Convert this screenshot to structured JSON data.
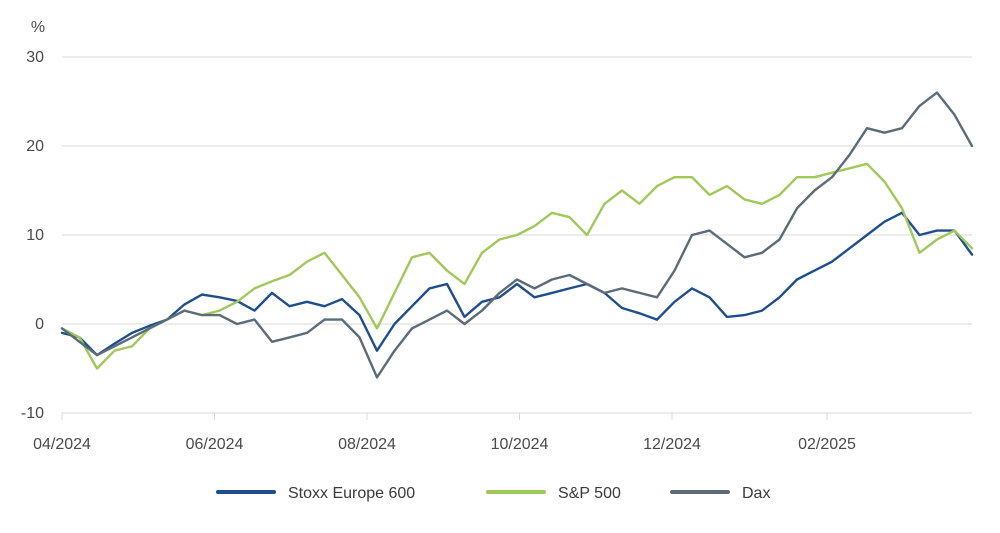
{
  "chart_data": {
    "type": "line",
    "ylabel": "%",
    "ylim": [
      -10,
      30
    ],
    "yticks": [
      -10,
      0,
      10,
      20,
      30
    ],
    "xlim": [
      "2024-04-01",
      "2025-03-31"
    ],
    "xticks": [
      {
        "date": "2024-04-01",
        "label": "04/2024"
      },
      {
        "date": "2024-06-01",
        "label": "06/2024"
      },
      {
        "date": "2024-08-01",
        "label": "08/2024"
      },
      {
        "date": "2024-10-01",
        "label": "10/2024"
      },
      {
        "date": "2024-12-01",
        "label": "12/2024"
      },
      {
        "date": "2025-02-01",
        "label": "02/2025"
      }
    ],
    "grid": "horizontal",
    "legend_position": "bottom",
    "series": [
      {
        "name": "Stoxx Europe 600",
        "color": "#1f4e8c",
        "points": [
          [
            "2024-04-01",
            -1.0
          ],
          [
            "2024-04-08",
            -1.5
          ],
          [
            "2024-04-15",
            -3.5
          ],
          [
            "2024-04-22",
            -2.2
          ],
          [
            "2024-04-29",
            -1.0
          ],
          [
            "2024-05-06",
            -0.2
          ],
          [
            "2024-05-13",
            0.5
          ],
          [
            "2024-05-20",
            2.2
          ],
          [
            "2024-05-27",
            3.3
          ],
          [
            "2024-06-03",
            3.0
          ],
          [
            "2024-06-10",
            2.6
          ],
          [
            "2024-06-17",
            1.5
          ],
          [
            "2024-06-24",
            3.5
          ],
          [
            "2024-07-01",
            2.0
          ],
          [
            "2024-07-08",
            2.5
          ],
          [
            "2024-07-15",
            2.0
          ],
          [
            "2024-07-22",
            2.8
          ],
          [
            "2024-07-29",
            1.0
          ],
          [
            "2024-08-05",
            -3.0
          ],
          [
            "2024-08-12",
            0.0
          ],
          [
            "2024-08-19",
            2.0
          ],
          [
            "2024-08-26",
            4.0
          ],
          [
            "2024-09-02",
            4.5
          ],
          [
            "2024-09-09",
            0.8
          ],
          [
            "2024-09-16",
            2.5
          ],
          [
            "2024-09-23",
            3.0
          ],
          [
            "2024-09-30",
            4.5
          ],
          [
            "2024-10-07",
            3.0
          ],
          [
            "2024-10-14",
            3.5
          ],
          [
            "2024-10-21",
            4.0
          ],
          [
            "2024-10-28",
            4.5
          ],
          [
            "2024-11-04",
            3.5
          ],
          [
            "2024-11-11",
            1.8
          ],
          [
            "2024-11-18",
            1.2
          ],
          [
            "2024-11-25",
            0.5
          ],
          [
            "2024-12-02",
            2.5
          ],
          [
            "2024-12-09",
            4.0
          ],
          [
            "2024-12-16",
            3.0
          ],
          [
            "2024-12-23",
            0.8
          ],
          [
            "2024-12-30",
            1.0
          ],
          [
            "2025-01-06",
            1.5
          ],
          [
            "2025-01-13",
            3.0
          ],
          [
            "2025-01-20",
            5.0
          ],
          [
            "2025-01-27",
            6.0
          ],
          [
            "2025-02-03",
            7.0
          ],
          [
            "2025-02-10",
            8.5
          ],
          [
            "2025-02-17",
            10.0
          ],
          [
            "2025-02-24",
            11.5
          ],
          [
            "2025-03-03",
            12.5
          ],
          [
            "2025-03-10",
            10.0
          ],
          [
            "2025-03-17",
            10.5
          ],
          [
            "2025-03-24",
            10.5
          ],
          [
            "2025-03-31",
            7.8
          ]
        ]
      },
      {
        "name": "S&P 500",
        "color": "#a0c95a",
        "points": [
          [
            "2024-04-01",
            -0.5
          ],
          [
            "2024-04-08",
            -1.5
          ],
          [
            "2024-04-15",
            -5.0
          ],
          [
            "2024-04-22",
            -3.0
          ],
          [
            "2024-04-29",
            -2.5
          ],
          [
            "2024-05-06",
            -0.5
          ],
          [
            "2024-05-13",
            0.5
          ],
          [
            "2024-05-20",
            1.5
          ],
          [
            "2024-05-27",
            1.0
          ],
          [
            "2024-06-03",
            1.5
          ],
          [
            "2024-06-10",
            2.5
          ],
          [
            "2024-06-17",
            4.0
          ],
          [
            "2024-06-24",
            4.8
          ],
          [
            "2024-07-01",
            5.5
          ],
          [
            "2024-07-08",
            7.0
          ],
          [
            "2024-07-15",
            8.0
          ],
          [
            "2024-07-22",
            5.5
          ],
          [
            "2024-07-29",
            3.0
          ],
          [
            "2024-08-05",
            -0.5
          ],
          [
            "2024-08-12",
            3.5
          ],
          [
            "2024-08-19",
            7.5
          ],
          [
            "2024-08-26",
            8.0
          ],
          [
            "2024-09-02",
            6.0
          ],
          [
            "2024-09-09",
            4.5
          ],
          [
            "2024-09-16",
            8.0
          ],
          [
            "2024-09-23",
            9.5
          ],
          [
            "2024-09-30",
            10.0
          ],
          [
            "2024-10-07",
            11.0
          ],
          [
            "2024-10-14",
            12.5
          ],
          [
            "2024-10-21",
            12.0
          ],
          [
            "2024-10-28",
            10.0
          ],
          [
            "2024-11-04",
            13.5
          ],
          [
            "2024-11-11",
            15.0
          ],
          [
            "2024-11-18",
            13.5
          ],
          [
            "2024-11-25",
            15.5
          ],
          [
            "2024-12-02",
            16.5
          ],
          [
            "2024-12-09",
            16.5
          ],
          [
            "2024-12-16",
            14.5
          ],
          [
            "2024-12-23",
            15.5
          ],
          [
            "2024-12-30",
            14.0
          ],
          [
            "2025-01-06",
            13.5
          ],
          [
            "2025-01-13",
            14.5
          ],
          [
            "2025-01-20",
            16.5
          ],
          [
            "2025-01-27",
            16.5
          ],
          [
            "2025-02-03",
            17.0
          ],
          [
            "2025-02-10",
            17.5
          ],
          [
            "2025-02-17",
            18.0
          ],
          [
            "2025-02-24",
            16.0
          ],
          [
            "2025-03-03",
            13.0
          ],
          [
            "2025-03-10",
            8.0
          ],
          [
            "2025-03-17",
            9.5
          ],
          [
            "2025-03-24",
            10.5
          ],
          [
            "2025-03-31",
            8.5
          ]
        ]
      },
      {
        "name": "Dax",
        "color": "#5b6b78",
        "points": [
          [
            "2024-04-01",
            -0.5
          ],
          [
            "2024-04-08",
            -2.0
          ],
          [
            "2024-04-15",
            -3.5
          ],
          [
            "2024-04-22",
            -2.5
          ],
          [
            "2024-04-29",
            -1.5
          ],
          [
            "2024-05-06",
            -0.5
          ],
          [
            "2024-05-13",
            0.5
          ],
          [
            "2024-05-20",
            1.5
          ],
          [
            "2024-05-27",
            1.0
          ],
          [
            "2024-06-03",
            1.0
          ],
          [
            "2024-06-10",
            0.0
          ],
          [
            "2024-06-17",
            0.5
          ],
          [
            "2024-06-24",
            -2.0
          ],
          [
            "2024-07-01",
            -1.5
          ],
          [
            "2024-07-08",
            -1.0
          ],
          [
            "2024-07-15",
            0.5
          ],
          [
            "2024-07-22",
            0.5
          ],
          [
            "2024-07-29",
            -1.5
          ],
          [
            "2024-08-05",
            -6.0
          ],
          [
            "2024-08-12",
            -3.0
          ],
          [
            "2024-08-19",
            -0.5
          ],
          [
            "2024-08-26",
            0.5
          ],
          [
            "2024-09-02",
            1.5
          ],
          [
            "2024-09-09",
            0.0
          ],
          [
            "2024-09-16",
            1.5
          ],
          [
            "2024-09-23",
            3.5
          ],
          [
            "2024-09-30",
            5.0
          ],
          [
            "2024-10-07",
            4.0
          ],
          [
            "2024-10-14",
            5.0
          ],
          [
            "2024-10-21",
            5.5
          ],
          [
            "2024-10-28",
            4.5
          ],
          [
            "2024-11-04",
            3.5
          ],
          [
            "2024-11-11",
            4.0
          ],
          [
            "2024-11-18",
            3.5
          ],
          [
            "2024-11-25",
            3.0
          ],
          [
            "2024-12-02",
            6.0
          ],
          [
            "2024-12-09",
            10.0
          ],
          [
            "2024-12-16",
            10.5
          ],
          [
            "2024-12-23",
            9.0
          ],
          [
            "2024-12-30",
            7.5
          ],
          [
            "2025-01-06",
            8.0
          ],
          [
            "2025-01-13",
            9.5
          ],
          [
            "2025-01-20",
            13.0
          ],
          [
            "2025-01-27",
            15.0
          ],
          [
            "2025-02-03",
            16.5
          ],
          [
            "2025-02-10",
            19.0
          ],
          [
            "2025-02-17",
            22.0
          ],
          [
            "2025-02-24",
            21.5
          ],
          [
            "2025-03-03",
            22.0
          ],
          [
            "2025-03-10",
            24.5
          ],
          [
            "2025-03-17",
            26.0
          ],
          [
            "2025-03-24",
            23.5
          ],
          [
            "2025-03-31",
            20.0
          ]
        ]
      }
    ]
  }
}
